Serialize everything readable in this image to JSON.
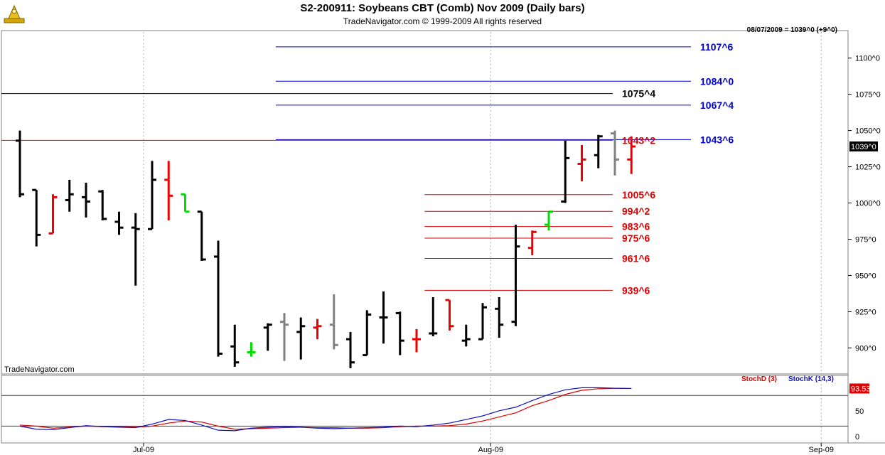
{
  "header": {
    "title": "S2-200911:  Soybeans CBT (Comb) Nov 2009  (Daily bars)",
    "copyright": "TradeNavigator.com © 1999-2009 All rights reserved",
    "last_info": "08/07/2009 = 1039^0 (+9^0)",
    "watermark": "TradeNavigator.com"
  },
  "colors": {
    "up": "#000000",
    "down": "#ee0000",
    "neutral": "#808080",
    "green": "#00dd00",
    "blue_level": "#0000cc",
    "red_level": "#dd0000",
    "stochD": "#e00000",
    "stochK": "#1010c0",
    "grid": "#b0b0b0"
  },
  "chart_data": [
    {
      "type": "ohlc",
      "title": "S2-200911:  Soybeans CBT (Comb) Nov 2009  (Daily bars)",
      "x_tick_labels": [
        "Jul-09",
        "Aug-09",
        "Sep-09"
      ],
      "x_tick_index": [
        8,
        29,
        49
      ],
      "y_ticks": [
        900,
        925,
        950,
        975,
        1000,
        1025,
        1050,
        1075,
        1100
      ],
      "y_tick_labels": [
        "900^0",
        "925^0",
        "950^0",
        "975^0",
        "1000^0",
        "1025^0",
        "1050^0",
        "1075^0",
        "1100^0"
      ],
      "ylim": [
        883,
        1118
      ],
      "last_price_label": "1039^0",
      "last_price": 1039,
      "levels": [
        {
          "label": "1107^6",
          "value": 1107.75,
          "color": "blue",
          "start_index": 16
        },
        {
          "label": "1084^0",
          "value": 1084,
          "color": "blue",
          "start_index": 16
        },
        {
          "label": "1075^4",
          "value": 1075.5,
          "color": "black",
          "start_index": 0
        },
        {
          "label": "1067^4",
          "value": 1067.5,
          "color": "blue",
          "start_index": 16
        },
        {
          "label": "1043^6",
          "value": 1043.75,
          "color": "blue",
          "start_index": 16
        },
        {
          "label": "1043^2",
          "value": 1043.25,
          "color": "red",
          "start_index": 0
        },
        {
          "label": "1005^6",
          "value": 1005.75,
          "color": "red",
          "start_index": 25
        },
        {
          "label": "994^2",
          "value": 994.25,
          "color": "red",
          "start_index": 25
        },
        {
          "label": "983^6",
          "value": 983.75,
          "color": "red",
          "start_index": 25
        },
        {
          "label": "975^6",
          "value": 975.75,
          "color": "red",
          "start_index": 25
        },
        {
          "label": "961^6",
          "value": 961.75,
          "color": "red",
          "start_index": 25
        },
        {
          "label": "939^6",
          "value": 939.75,
          "color": "red",
          "start_index": 25
        }
      ],
      "bars": [
        {
          "o": 1043,
          "h": 1050,
          "l": 1004,
          "c": 1006,
          "k": "up"
        },
        {
          "o": 1009,
          "h": 1009,
          "l": 970,
          "c": 978,
          "k": "up"
        },
        {
          "o": 979,
          "h": 1006,
          "l": 979,
          "c": 1004,
          "k": "down"
        },
        {
          "o": 1002,
          "h": 1016,
          "l": 994,
          "c": 1006,
          "k": "up"
        },
        {
          "o": 1004,
          "h": 1014,
          "l": 990,
          "c": 1001,
          "k": "up"
        },
        {
          "o": 1008,
          "h": 1009,
          "l": 988,
          "c": 989,
          "k": "up"
        },
        {
          "o": 987,
          "h": 994,
          "l": 978,
          "c": 983,
          "k": "up"
        },
        {
          "o": 983,
          "h": 993,
          "l": 943,
          "c": 982,
          "k": "up"
        },
        {
          "o": 982,
          "h": 1029,
          "l": 982,
          "c": 1016,
          "k": "up"
        },
        {
          "o": 1016,
          "h": 1029,
          "l": 988,
          "c": 1005,
          "k": "down"
        },
        {
          "o": 1006,
          "h": 1006,
          "l": 994,
          "c": 994,
          "k": "green"
        },
        {
          "o": 994,
          "h": 994,
          "l": 960,
          "c": 961,
          "k": "up"
        },
        {
          "o": 963,
          "h": 974,
          "l": 894,
          "c": 896,
          "k": "up"
        },
        {
          "o": 901,
          "h": 916,
          "l": 887,
          "c": 890,
          "k": "up"
        },
        {
          "o": 897,
          "h": 904,
          "l": 894,
          "c": 897,
          "k": "green"
        },
        {
          "o": 914,
          "h": 917,
          "l": 898,
          "c": 916,
          "k": "up"
        },
        {
          "o": 918,
          "h": 924,
          "l": 891,
          "c": 916,
          "k": "neutral"
        },
        {
          "o": 911,
          "h": 921,
          "l": 892,
          "c": 915,
          "k": "up"
        },
        {
          "o": 914,
          "h": 920,
          "l": 906,
          "c": 915,
          "k": "down"
        },
        {
          "o": 916,
          "h": 937,
          "l": 899,
          "c": 902,
          "k": "neutral"
        },
        {
          "o": 906,
          "h": 911,
          "l": 886,
          "c": 890,
          "k": "up"
        },
        {
          "o": 895,
          "h": 926,
          "l": 895,
          "c": 923,
          "k": "up"
        },
        {
          "o": 921,
          "h": 939,
          "l": 903,
          "c": 921,
          "k": "up"
        },
        {
          "o": 924,
          "h": 925,
          "l": 895,
          "c": 905,
          "k": "up"
        },
        {
          "o": 906,
          "h": 913,
          "l": 897,
          "c": 906,
          "k": "down"
        },
        {
          "o": 910,
          "h": 935,
          "l": 908,
          "c": 910,
          "k": "up"
        },
        {
          "o": 933,
          "h": 933,
          "l": 912,
          "c": 915,
          "k": "down"
        },
        {
          "o": 905,
          "h": 916,
          "l": 901,
          "c": 906,
          "k": "up"
        },
        {
          "o": 906,
          "h": 931,
          "l": 906,
          "c": 928,
          "k": "up"
        },
        {
          "o": 927,
          "h": 935,
          "l": 907,
          "c": 916,
          "k": "up"
        },
        {
          "o": 918,
          "h": 985,
          "l": 915,
          "c": 970,
          "k": "up"
        },
        {
          "o": 969,
          "h": 981,
          "l": 964,
          "c": 980,
          "k": "down"
        },
        {
          "o": 985,
          "h": 994,
          "l": 981,
          "c": 994,
          "k": "green"
        },
        {
          "o": 1001,
          "h": 1043,
          "l": 1000,
          "c": 1031,
          "k": "up"
        },
        {
          "o": 1027,
          "h": 1040,
          "l": 1015,
          "c": 1030,
          "k": "down"
        },
        {
          "o": 1033,
          "h": 1047,
          "l": 1024,
          "c": 1046,
          "k": "up"
        },
        {
          "o": 1048,
          "h": 1050,
          "l": 1019,
          "c": 1030,
          "k": "neutral"
        },
        {
          "o": 1030,
          "h": 1046,
          "l": 1020,
          "c": 1039,
          "k": "down"
        }
      ]
    },
    {
      "type": "line",
      "title": "StochD (3)  StochK (14,3)",
      "y_ticks": [
        0,
        50
      ],
      "y_tick_labels": [
        "0",
        "50"
      ],
      "ylim": [
        -10,
        115
      ],
      "reference_lines": [
        20,
        80
      ],
      "last_value_label": "93.53",
      "last_value": 93.53,
      "series": [
        {
          "name": "StochD (3)",
          "color": "stochD",
          "values": [
            22,
            20,
            16,
            18,
            20,
            19,
            19,
            18,
            20,
            26,
            30,
            28,
            20,
            14,
            15,
            16,
            17,
            18,
            17,
            17,
            16,
            16,
            17,
            19,
            20,
            20,
            21,
            24,
            30,
            38,
            46,
            60,
            70,
            82,
            90,
            93,
            94,
            93.53
          ]
        },
        {
          "name": "StochK (14,3)",
          "color": "stochK",
          "values": [
            20,
            14,
            13,
            17,
            21,
            19,
            18,
            17,
            24,
            33,
            31,
            22,
            12,
            11,
            16,
            18,
            19,
            18,
            16,
            15,
            16,
            17,
            18,
            20,
            19,
            22,
            26,
            33,
            40,
            50,
            57,
            70,
            82,
            91,
            95,
            95,
            94,
            93.53
          ]
        }
      ]
    }
  ]
}
